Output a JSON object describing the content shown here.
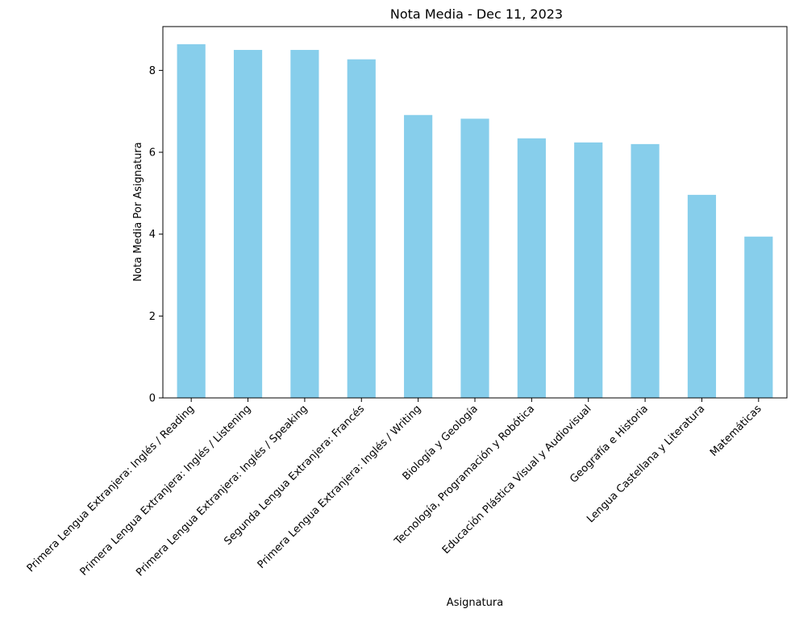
{
  "chart_data": {
    "type": "bar",
    "title": "Nota Media - Dec 11, 2023",
    "xlabel": "Asignatura",
    "ylabel": "Nota Media Por Asignatura",
    "categories": [
      "Primera Lengua Extranjera: Inglés / Reading",
      "Primera Lengua Extranjera: Inglés / Listening",
      "Primera Lengua Extranjera: Inglés / Speaking",
      "Segunda Lengua Extranjera: Francés",
      "Primera Lengua Extranjera: Inglés / Writing",
      "Biología y Geología",
      "Tecnología, Programación y Robótica",
      "Educación Plástica Visual y Audiovisual",
      "Geografía e Historia",
      "Lengua Castellana y Literatura",
      "Matemáticas"
    ],
    "values": [
      8.64,
      8.5,
      8.5,
      8.27,
      6.91,
      6.82,
      6.34,
      6.24,
      6.2,
      4.96,
      3.94
    ],
    "yticks": [
      "0",
      "2",
      "4",
      "6",
      "8"
    ],
    "ylim": [
      0,
      9.07
    ],
    "bar_color": "#87ceeb",
    "grid": false,
    "legend": "none"
  }
}
